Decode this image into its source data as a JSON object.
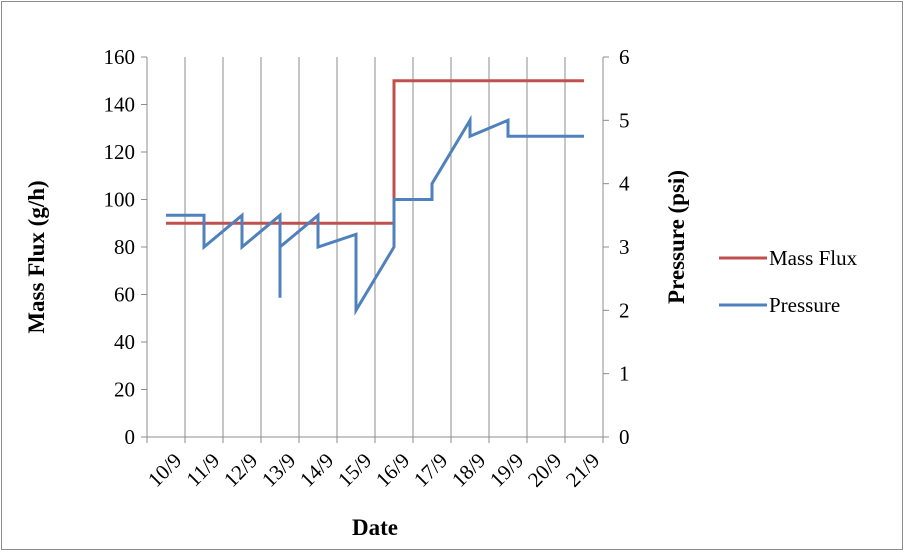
{
  "chart_data": {
    "type": "line",
    "x_categories": [
      "10/9",
      "11/9",
      "12/9",
      "13/9",
      "14/9",
      "15/9",
      "16/9",
      "17/9",
      "18/9",
      "19/9",
      "20/9",
      "21/9"
    ],
    "xlabel": "Date",
    "ylabel_left": "Mass Flux (g/h)",
    "ylabel_right": "Pressure (psi)",
    "ylim_left": [
      0,
      160
    ],
    "yticks_left": [
      0,
      20,
      40,
      60,
      80,
      100,
      120,
      140,
      160
    ],
    "ylim_right": [
      0,
      6
    ],
    "yticks_right": [
      0,
      1,
      2,
      3,
      4,
      5,
      6
    ],
    "grid": "vertical",
    "legend_position": "right",
    "series": [
      {
        "name": "Mass Flux",
        "axis": "left",
        "color": "#c0504d",
        "points": [
          [
            0,
            90
          ],
          [
            6,
            90
          ],
          [
            6,
            150
          ],
          [
            11,
            150
          ]
        ]
      },
      {
        "name": "Pressure",
        "axis": "right",
        "color": "#4f81bd",
        "points": [
          [
            0,
            3.5
          ],
          [
            1,
            3.5
          ],
          [
            1,
            3.0
          ],
          [
            2,
            3.5
          ],
          [
            2,
            3.0
          ],
          [
            3,
            3.5
          ],
          [
            3,
            2.2
          ],
          [
            3,
            3.0
          ],
          [
            4,
            3.5
          ],
          [
            4,
            3.0
          ],
          [
            5,
            3.2
          ],
          [
            5,
            2.0
          ],
          [
            6,
            3.0
          ],
          [
            6,
            3.75
          ],
          [
            7,
            3.75
          ],
          [
            7,
            4.0
          ],
          [
            8,
            5.0
          ],
          [
            8,
            4.75
          ],
          [
            9,
            5.0
          ],
          [
            9,
            4.75
          ],
          [
            11,
            4.75
          ]
        ]
      }
    ]
  }
}
